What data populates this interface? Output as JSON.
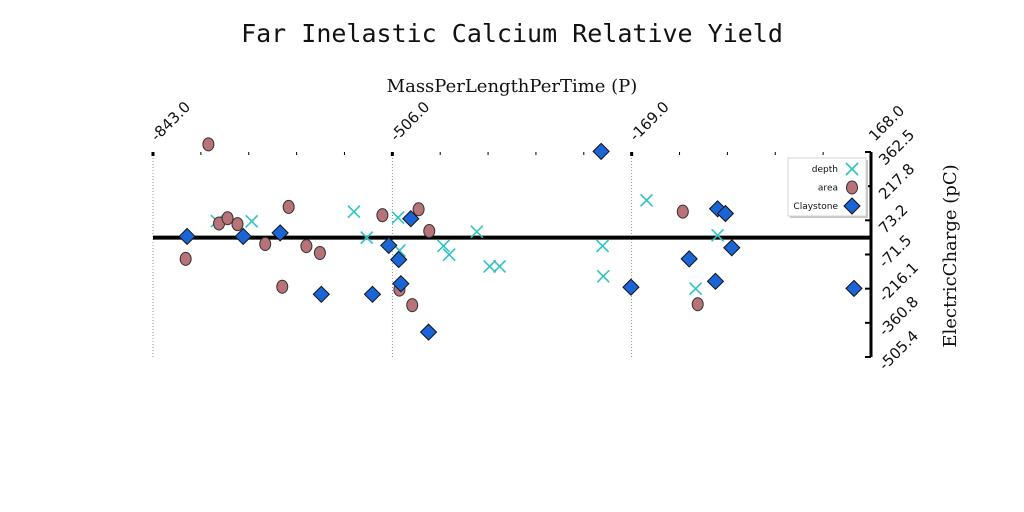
{
  "chart_data": {
    "type": "scatter",
    "title": "Far Inelastic Calcium Relative Yield",
    "xlabel": "MassPerLengthPerTime (P)",
    "ylabel": "ElectricCharge (pC)",
    "xlim": [
      -843.0,
      168.0
    ],
    "ylim": [
      -505.4,
      362.5
    ],
    "x_ticks": [
      -843.0,
      -506.0,
      -169.0,
      168.0
    ],
    "x_tick_labels": [
      "-843.0",
      "-506.0",
      "-169.0",
      "168.0"
    ],
    "y_ticks": [
      362.5,
      217.8,
      73.2,
      -71.5,
      -216.1,
      -360.8,
      -505.4
    ],
    "y_tick_labels": [
      "362.5",
      "217.8",
      "73.2",
      "-71.5",
      "-216.1",
      "-360.8",
      "-505.4"
    ],
    "zero_line": 0,
    "grid": "vertical dotted lines at major x ticks",
    "legend_position": "top-right",
    "series": [
      {
        "name": "depth",
        "marker": "x",
        "color": "#2ec4c4",
        "points": [
          [
            -753,
            70
          ],
          [
            -704,
            69
          ],
          [
            -560,
            110
          ],
          [
            -542,
            0
          ],
          [
            -498,
            85
          ],
          [
            -496,
            -55
          ],
          [
            -434,
            -35
          ],
          [
            -426,
            -72
          ],
          [
            -387,
            25
          ],
          [
            -369,
            -122
          ],
          [
            -355,
            -122
          ],
          [
            -210,
            -35
          ],
          [
            -209,
            -164
          ],
          [
            -148,
            158
          ],
          [
            -79,
            -216
          ],
          [
            -48,
            10
          ]
        ]
      },
      {
        "name": "area",
        "marker": "o",
        "color": "#b87378",
        "points": [
          [
            -765,
            395
          ],
          [
            -750,
            60
          ],
          [
            -738,
            82
          ],
          [
            -797,
            -90
          ],
          [
            -724,
            57
          ],
          [
            -685,
            -27
          ],
          [
            -661,
            -208
          ],
          [
            -652,
            130
          ],
          [
            -627,
            -36
          ],
          [
            -608,
            -65
          ],
          [
            -520,
            95
          ],
          [
            -496,
            -220
          ],
          [
            -478,
            -286
          ],
          [
            -469,
            120
          ],
          [
            -454,
            28
          ],
          [
            -76,
            -282
          ],
          [
            -97,
            110
          ]
        ]
      },
      {
        "name": "Claystone",
        "marker": "D",
        "color": "#1a64d6",
        "points": [
          [
            -795,
            5
          ],
          [
            -716,
            5
          ],
          [
            -664,
            20
          ],
          [
            -606,
            -240
          ],
          [
            -534,
            -240
          ],
          [
            -494,
            -195
          ],
          [
            -511,
            -33
          ],
          [
            -480,
            80
          ],
          [
            -497,
            -93
          ],
          [
            -455,
            -400
          ],
          [
            -212,
            365
          ],
          [
            -88,
            -90
          ],
          [
            -48,
            122
          ],
          [
            -28,
            -43
          ],
          [
            -51,
            -185
          ],
          [
            -170,
            -210
          ],
          [
            -37,
            102
          ],
          [
            144,
            -215
          ]
        ]
      }
    ]
  }
}
